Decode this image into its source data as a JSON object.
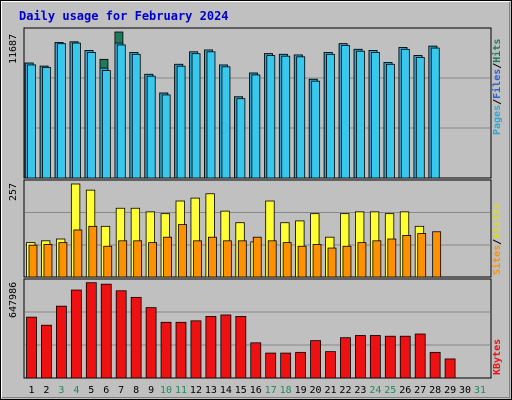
{
  "chart_data": [
    {
      "type": "bar",
      "title": "Daily usage for February 2024",
      "ylabel_max": "11687",
      "days": [
        "1",
        "2",
        "3",
        "4",
        "5",
        "6",
        "7",
        "8",
        "9",
        "10",
        "11",
        "12",
        "13",
        "14",
        "15",
        "16",
        "17",
        "18",
        "19",
        "20",
        "21",
        "22",
        "23",
        "24",
        "25",
        "26",
        "27",
        "28",
        "29",
        "30",
        "31"
      ],
      "weekend_days": [
        3,
        4,
        10,
        11,
        17,
        18,
        24,
        25,
        31
      ],
      "ylim": [
        0,
        11687
      ],
      "series": [
        {
          "name": "Pages",
          "color": "#2ea6d0",
          "values": [
            9200,
            8950,
            10850,
            10900,
            10200,
            8800,
            10800,
            10050,
            8300,
            6800,
            9100,
            10100,
            10250,
            9050,
            6500,
            8400,
            9950,
            9900,
            9850,
            7900,
            10050,
            10750,
            10300,
            10200,
            9250,
            10450,
            9800,
            10550,
            null,
            null,
            null
          ]
        },
        {
          "name": "Files",
          "color": "#38c8ee",
          "values": [
            9050,
            8850,
            10750,
            10800,
            10050,
            8600,
            10650,
            9900,
            8150,
            6650,
            8950,
            9950,
            10100,
            8900,
            6350,
            8250,
            9800,
            9750,
            9700,
            7750,
            9900,
            10600,
            10150,
            10050,
            9100,
            10300,
            9650,
            10400,
            null,
            null,
            null
          ]
        },
        {
          "name": "Hits",
          "color": "#1f7a5c",
          "values": [
            9200,
            8950,
            10850,
            10900,
            10200,
            9500,
            11687,
            10050,
            8300,
            6800,
            9100,
            10100,
            10250,
            9050,
            6500,
            8400,
            9950,
            9900,
            9850,
            7900,
            10050,
            10750,
            10300,
            10200,
            9250,
            10450,
            9800,
            10550,
            null,
            null,
            null
          ]
        }
      ]
    },
    {
      "type": "bar",
      "ylabel_max": "257",
      "ylim": [
        0,
        257
      ],
      "series": [
        {
          "name": "Visits",
          "color": "#ffff33",
          "values": [
            95,
            100,
            105,
            257,
            240,
            140,
            190,
            190,
            180,
            175,
            210,
            218,
            230,
            182,
            150,
            97,
            210,
            150,
            155,
            175,
            110,
            175,
            180,
            180,
            175,
            180,
            140,
            null,
            null,
            null,
            null
          ]
        },
        {
          "name": "Sites",
          "color": "#ff9000",
          "values": [
            88,
            90,
            95,
            130,
            140,
            85,
            100,
            100,
            95,
            110,
            145,
            100,
            110,
            100,
            100,
            110,
            100,
            95,
            85,
            90,
            80,
            85,
            95,
            100,
            105,
            115,
            120,
            125,
            null,
            null,
            null
          ]
        }
      ]
    },
    {
      "type": "bar",
      "ylabel_max": "647986",
      "ylim": [
        0,
        647986
      ],
      "series": [
        {
          "name": "KBytes",
          "color": "#ee1111",
          "values": [
            415000,
            360000,
            490000,
            600000,
            650000,
            640000,
            595000,
            550000,
            480000,
            380000,
            380000,
            390000,
            420000,
            430000,
            420000,
            240000,
            170000,
            170000,
            175000,
            255000,
            180000,
            275000,
            290000,
            290000,
            285000,
            285000,
            300000,
            175000,
            130000,
            null,
            null
          ]
        }
      ]
    }
  ],
  "legend_top": [
    {
      "text": "Pages",
      "color": "#2ea6d0"
    },
    {
      "text": "/",
      "color": "#000000"
    },
    {
      "text": "Files",
      "color": "#2a62d8"
    },
    {
      "text": "/",
      "color": "#000000"
    },
    {
      "text": "Hits",
      "color": "#1f7a5c"
    }
  ],
  "legend_mid": [
    {
      "text": "Sites",
      "color": "#ff9000"
    },
    {
      "text": "/",
      "color": "#000000"
    },
    {
      "text": "Visits",
      "color": "#e0e000"
    }
  ],
  "legend_bottom": [
    {
      "text": "KBytes",
      "color": "#ee1111"
    }
  ]
}
